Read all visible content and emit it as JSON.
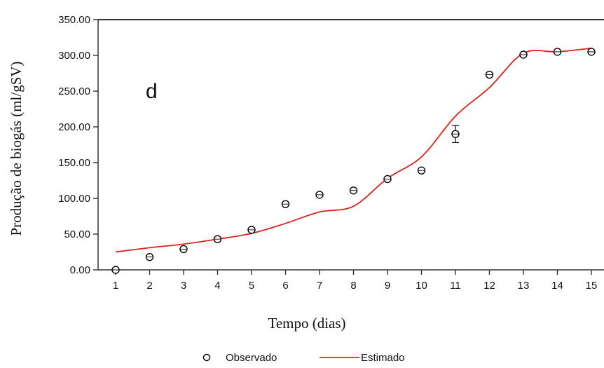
{
  "chart_data": {
    "type": "line",
    "panel_label": "d",
    "xlabel": "Tempo (dias)",
    "ylabel": "Produção de biogás (ml/gSV)",
    "x_ticks": [
      "1",
      "2",
      "3",
      "4",
      "5",
      "6",
      "7",
      "8",
      "9",
      "10",
      "11",
      "12",
      "13",
      "14",
      "15"
    ],
    "y_ticks": [
      "0.00",
      "50.00",
      "100.00",
      "150.00",
      "200.00",
      "250.00",
      "300.00",
      "350.00"
    ],
    "xlim": [
      0.95,
      15.35
    ],
    "ylim": [
      0,
      350
    ],
    "grid": false,
    "legend_position": "bottom-center",
    "series": [
      {
        "name": "Observado",
        "kind": "scatter",
        "marker": "open-circle",
        "color": "#000000",
        "x": [
          1,
          2,
          3,
          4,
          5,
          6,
          7,
          8,
          9,
          10,
          11,
          12,
          13,
          14,
          15
        ],
        "y": [
          0,
          18,
          29,
          43,
          56,
          92,
          105,
          111,
          127,
          139,
          190,
          273,
          301,
          305,
          305
        ],
        "error": [
          0,
          0,
          0,
          0,
          0,
          0,
          0,
          0,
          0,
          0,
          12,
          0,
          0,
          0,
          0
        ]
      },
      {
        "name": "Estimado",
        "kind": "line",
        "color": "#e0201b",
        "x": [
          1,
          2,
          3,
          4,
          5,
          6,
          7,
          8,
          9,
          10,
          11,
          12,
          13,
          14,
          15
        ],
        "y": [
          25,
          31,
          36,
          43,
          51,
          65,
          81,
          89,
          128,
          158,
          215,
          255,
          303,
          305,
          310
        ]
      }
    ]
  }
}
